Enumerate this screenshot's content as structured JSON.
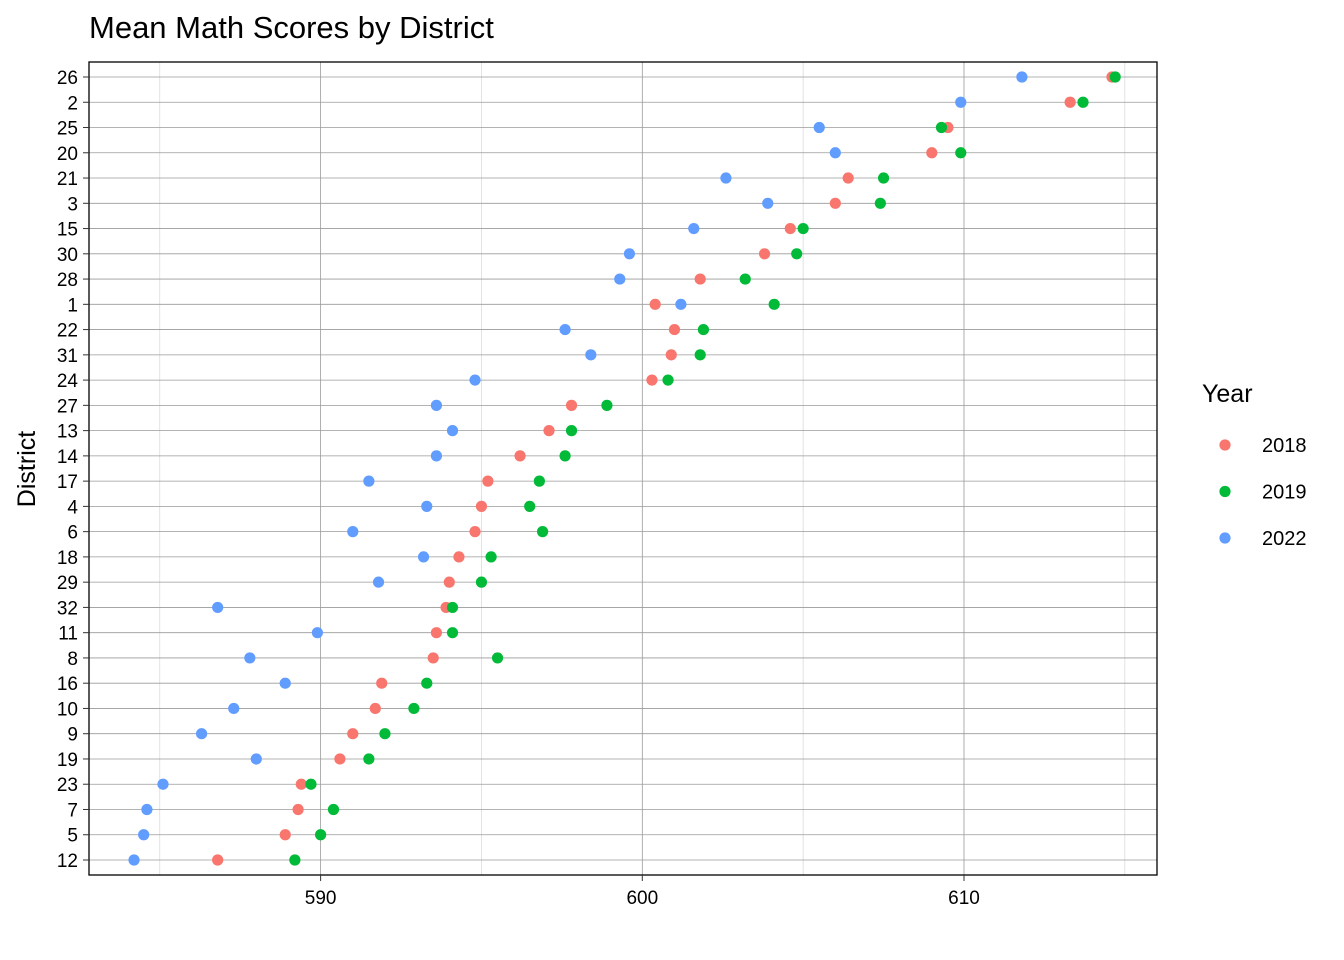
{
  "chart_data": {
    "type": "scatter",
    "title": "Mean Math Scores by District",
    "xlabel": "",
    "ylabel": "District",
    "xlim": [
      582.8,
      616.0
    ],
    "xticks": [
      590,
      600,
      610
    ],
    "grid": true,
    "legend": {
      "title": "Year",
      "position": "right"
    },
    "categories": [
      "26",
      "2",
      "25",
      "20",
      "21",
      "3",
      "15",
      "30",
      "28",
      "1",
      "22",
      "31",
      "24",
      "27",
      "13",
      "14",
      "17",
      "4",
      "6",
      "18",
      "29",
      "32",
      "11",
      "8",
      "16",
      "10",
      "9",
      "19",
      "23",
      "7",
      "5",
      "12"
    ],
    "series": [
      {
        "name": "2018",
        "color": "#F8766D",
        "values": [
          614.6,
          613.3,
          609.5,
          609.0,
          606.4,
          606.0,
          604.6,
          603.8,
          601.8,
          600.4,
          601.0,
          600.9,
          600.3,
          597.8,
          597.1,
          596.2,
          595.2,
          595.0,
          594.8,
          594.3,
          594.0,
          593.9,
          593.6,
          593.5,
          591.9,
          591.7,
          591.0,
          590.6,
          589.4,
          589.3,
          588.9,
          586.8
        ]
      },
      {
        "name": "2019",
        "color": "#00BA38",
        "values": [
          614.7,
          613.7,
          609.3,
          609.9,
          607.5,
          607.4,
          605.0,
          604.8,
          603.2,
          604.1,
          601.9,
          601.8,
          600.8,
          598.9,
          597.8,
          597.6,
          596.8,
          596.5,
          596.9,
          595.3,
          595.0,
          594.1,
          594.1,
          595.5,
          593.3,
          592.9,
          592.0,
          591.5,
          589.7,
          590.4,
          590.0,
          589.2
        ]
      },
      {
        "name": "2022",
        "color": "#619CFF",
        "values": [
          611.8,
          609.9,
          605.5,
          606.0,
          602.6,
          603.9,
          601.6,
          599.6,
          599.3,
          601.2,
          597.6,
          598.4,
          594.8,
          593.6,
          594.1,
          593.6,
          591.5,
          593.3,
          591.0,
          593.2,
          591.8,
          586.8,
          589.9,
          587.8,
          588.9,
          587.3,
          586.3,
          588.0,
          585.1,
          584.6,
          584.5,
          584.2
        ]
      }
    ]
  }
}
